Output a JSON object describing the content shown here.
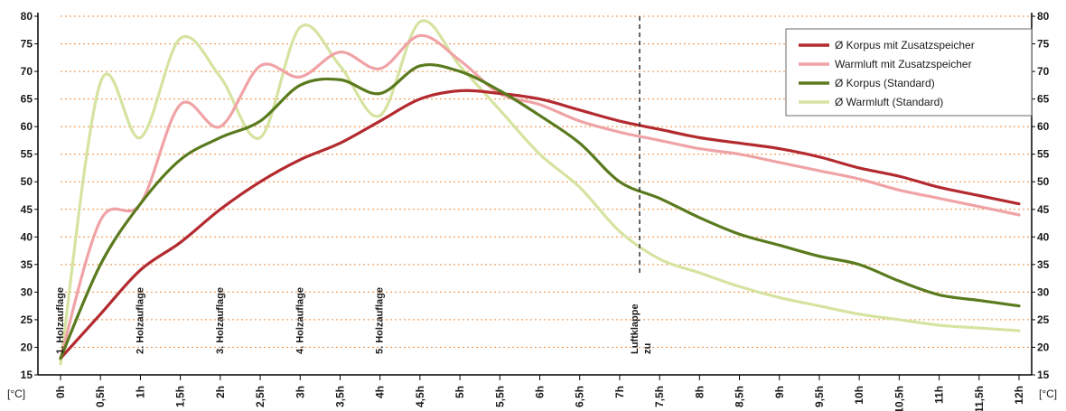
{
  "chart_data": {
    "type": "line",
    "title": "",
    "xlabel": "",
    "ylabel": "[°C]",
    "ylabel_right": "[°C]",
    "ylim": [
      15,
      80
    ],
    "y_ticks": [
      "80",
      "75",
      "70",
      "65",
      "60",
      "55",
      "50",
      "45",
      "40",
      "35",
      "30",
      "25",
      "20",
      "15"
    ],
    "x_tick_labels": [
      "0h",
      "0,5h",
      "1h",
      "1,5h",
      "2h",
      "2,5h",
      "3h",
      "3,5h",
      "4h",
      "4,5h",
      "5h",
      "5,5h",
      "6h",
      "6,5h",
      "7h",
      "7,5h",
      "8h",
      "8,5h",
      "9h",
      "9,5h",
      "10h",
      "10,5h",
      "11h",
      "11,5h",
      "12h"
    ],
    "grid": "horizontal dotted",
    "legend_position": "top-right",
    "series": [
      {
        "name": "Ø Korpus mit Zusatzspeicher",
        "color": "#b32a2f",
        "x": [
          0,
          0.5,
          1,
          1.5,
          2,
          2.5,
          3,
          3.5,
          4,
          4.5,
          5,
          5.5,
          6,
          6.5,
          7,
          7.5,
          8,
          8.5,
          9,
          9.5,
          10,
          10.5,
          11,
          11.5,
          12
        ],
        "values": [
          18,
          26,
          34,
          39,
          45,
          50,
          54,
          57,
          61,
          65,
          66.5,
          66,
          65,
          63,
          61,
          59.5,
          58,
          57,
          56,
          54.5,
          52.5,
          51,
          49,
          47.5,
          46
        ]
      },
      {
        "name": "Warmluft mit Zusatzspeicher",
        "color": "#f0a3a6",
        "x": [
          0,
          0.5,
          1,
          1.5,
          2,
          2.5,
          3,
          3.5,
          4,
          4.5,
          5,
          5.5,
          6,
          6.5,
          7,
          7.5,
          8,
          8.5,
          9,
          9.5,
          10,
          10.5,
          11,
          11.5,
          12
        ],
        "values": [
          18,
          43,
          46,
          64,
          60,
          71,
          69,
          73.5,
          70.5,
          76.5,
          72,
          66,
          64,
          61,
          59,
          57.5,
          56,
          55,
          53.5,
          52,
          50.5,
          48.5,
          47,
          45.5,
          44
        ]
      },
      {
        "name": "Ø Korpus (Standard)",
        "color": "#5a7a1e",
        "x": [
          0,
          0.5,
          1,
          1.5,
          2,
          2.5,
          3,
          3.5,
          4,
          4.5,
          5,
          5.5,
          6,
          6.5,
          7,
          7.5,
          8,
          8.5,
          9,
          9.5,
          10,
          10.5,
          11,
          11.5,
          12
        ],
        "values": [
          18,
          35,
          46,
          54,
          58,
          61,
          67.5,
          68.5,
          66,
          71,
          70,
          66.5,
          62,
          57,
          50,
          47,
          43.5,
          40.5,
          38.5,
          36.5,
          35,
          32,
          29.5,
          28.5,
          27.5
        ]
      },
      {
        "name": "Ø Warmluft (Standard)",
        "color": "#d6e3a0",
        "x": [
          0,
          0.5,
          1,
          1.5,
          2,
          2.5,
          3,
          3.5,
          4,
          4.5,
          5,
          5.5,
          6,
          6.5,
          7,
          7.5,
          8,
          8.5,
          9,
          9.5,
          10,
          10.5,
          11,
          11.5,
          12
        ],
        "values": [
          17,
          68,
          58,
          76,
          69,
          58,
          78,
          71,
          62,
          79,
          71,
          63,
          55,
          49,
          41,
          36,
          33.5,
          31,
          29,
          27.5,
          26,
          25,
          24,
          23.5,
          23
        ]
      }
    ],
    "annotations": [
      {
        "x": 0,
        "text": "1. Holzauflage"
      },
      {
        "x": 1,
        "text": "2. Holzauflage"
      },
      {
        "x": 2,
        "text": "3. Holzauflage"
      },
      {
        "x": 3,
        "text": "4. Holzauflage"
      },
      {
        "x": 4,
        "text": "5. Holzauflage"
      },
      {
        "x": 7.25,
        "lines": [
          "Luftklappe",
          "zu"
        ],
        "marker_top": 80,
        "marker_bottom": 33
      }
    ]
  }
}
